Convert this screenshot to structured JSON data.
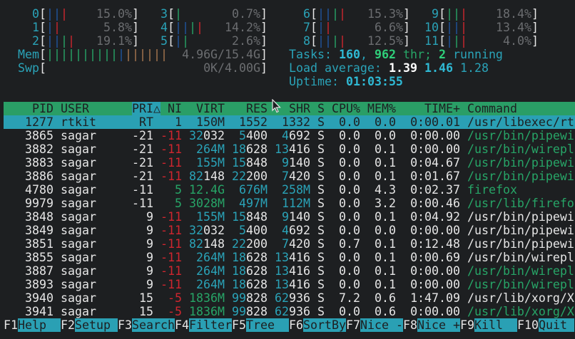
{
  "colors": {
    "background": "#1d1f21",
    "header_bg": "#2a9e66",
    "selected_bg": "#2aa0b4",
    "label": "#2aa3b8",
    "green": "#27a567",
    "red": "#d0262f",
    "bar_blue": "#1f55a0",
    "bar_orange": "#a9784f"
  },
  "cpus": [
    {
      "id": "0",
      "bars": [
        "blue",
        "blue",
        "red"
      ],
      "value": "15.0%"
    },
    {
      "id": "1",
      "bars": [
        "blue",
        "red"
      ],
      "value": "5.8%"
    },
    {
      "id": "2",
      "bars": [
        "blue",
        "blue",
        "green",
        "red"
      ],
      "value": "19.1%"
    },
    {
      "id": "3",
      "bars": [
        "green"
      ],
      "value": "0.7%"
    },
    {
      "id": "4",
      "bars": [
        "blue",
        "blue",
        "green",
        "red"
      ],
      "value": "14.2%"
    },
    {
      "id": "5",
      "bars": [
        "blue",
        "green"
      ],
      "value": "2.6%"
    },
    {
      "id": "6",
      "bars": [
        "blue",
        "blue",
        "green",
        "red"
      ],
      "value": "15.3%"
    },
    {
      "id": "7",
      "bars": [
        "blue",
        "red"
      ],
      "value": "6.6%"
    },
    {
      "id": "8",
      "bars": [
        "blue",
        "blue",
        "green",
        "red"
      ],
      "value": "12.5%"
    },
    {
      "id": "9",
      "bars": [
        "green",
        "green",
        "red"
      ],
      "value": "18.4%"
    },
    {
      "id": "10",
      "bars": [
        "blue",
        "blue",
        "red"
      ],
      "value": "13.4%"
    },
    {
      "id": "11",
      "bars": [
        "blue",
        "green",
        "red"
      ],
      "value": "4.0%"
    }
  ],
  "mem": {
    "label": "Mem",
    "bars": [
      "green",
      "green",
      "green",
      "green",
      "green",
      "green",
      "green",
      "green",
      "green",
      "green",
      "blue",
      "orange",
      "orange",
      "orange",
      "orange",
      "orange",
      "orange"
    ],
    "value": "4.96G/15.4G"
  },
  "swp": {
    "label": "Swp",
    "bars": [],
    "value": "0K/4.00G"
  },
  "tasks": {
    "label": "Tasks: ",
    "count": "160",
    "sep": ", ",
    "threads": "962",
    "thr_label": " thr; ",
    "running": "2",
    "running_label": " running"
  },
  "load": {
    "label": "Load average: ",
    "one": "1.39",
    "five": "1.46",
    "fifteen": "1.28"
  },
  "uptime": {
    "label": "Uptime: ",
    "value": "01:03:55"
  },
  "columns": [
    "PID",
    "USER",
    "PRI",
    "△",
    "NI",
    "VIRT",
    "RES",
    "SHR",
    "S",
    "CPU%",
    "MEM%",
    "TIME+",
    "Command"
  ],
  "sort_column": "PRI",
  "processes": [
    {
      "pid": "1277",
      "user": "rtkit",
      "pri": "RT",
      "ni": "1",
      "virt": "150M",
      "res": "1552",
      "shr": "1332",
      "s": "S",
      "cpu": "0.0",
      "mem": "0.0",
      "time": "0:00.01",
      "command": "/usr/libexec/rt",
      "thread": false,
      "selected": true
    },
    {
      "pid": "3865",
      "user": "sagar",
      "pri": "-21",
      "ni": "-11",
      "virt": "32032",
      "res": "5400",
      "shr": "4692",
      "s": "S",
      "cpu": "0.0",
      "mem": "0.0",
      "time": "0:00.00",
      "command": "/usr/bin/pipewi",
      "thread": true
    },
    {
      "pid": "3882",
      "user": "sagar",
      "pri": "-21",
      "ni": "-11",
      "virt": "264M",
      "res": "18628",
      "shr": "13416",
      "s": "S",
      "cpu": "0.0",
      "mem": "0.1",
      "time": "0:00.00",
      "command": "/usr/bin/wirepl",
      "thread": true
    },
    {
      "pid": "3883",
      "user": "sagar",
      "pri": "-21",
      "ni": "-11",
      "virt": "155M",
      "res": "15848",
      "shr": "9140",
      "s": "S",
      "cpu": "0.0",
      "mem": "0.1",
      "time": "0:04.67",
      "command": "/usr/bin/pipewi",
      "thread": true
    },
    {
      "pid": "3886",
      "user": "sagar",
      "pri": "-21",
      "ni": "-11",
      "virt": "82148",
      "res": "22200",
      "shr": "7420",
      "s": "S",
      "cpu": "0.0",
      "mem": "0.1",
      "time": "0:01.67",
      "command": "/usr/bin/pipewi",
      "thread": true
    },
    {
      "pid": "4780",
      "user": "sagar",
      "pri": "-11",
      "ni": "5",
      "virt": "12.4G",
      "res": "676M",
      "shr": "258M",
      "s": "S",
      "cpu": "0.0",
      "mem": "4.3",
      "time": "0:02.37",
      "command": "firefox",
      "thread": true
    },
    {
      "pid": "9979",
      "user": "sagar",
      "pri": "-11",
      "ni": "5",
      "virt": "3028M",
      "res": "497M",
      "shr": "112M",
      "s": "S",
      "cpu": "0.0",
      "mem": "3.2",
      "time": "0:00.46",
      "command": "/usr/lib/firefo",
      "thread": true
    },
    {
      "pid": "3848",
      "user": "sagar",
      "pri": "9",
      "ni": "-11",
      "virt": "155M",
      "res": "15848",
      "shr": "9140",
      "s": "S",
      "cpu": "0.0",
      "mem": "0.1",
      "time": "0:04.92",
      "command": "/usr/bin/pipewi",
      "thread": false
    },
    {
      "pid": "3849",
      "user": "sagar",
      "pri": "9",
      "ni": "-11",
      "virt": "32032",
      "res": "5400",
      "shr": "4692",
      "s": "S",
      "cpu": "0.0",
      "mem": "0.0",
      "time": "0:00.00",
      "command": "/usr/bin/pipewi",
      "thread": false
    },
    {
      "pid": "3851",
      "user": "sagar",
      "pri": "9",
      "ni": "-11",
      "virt": "82148",
      "res": "22200",
      "shr": "7420",
      "s": "S",
      "cpu": "0.7",
      "mem": "0.1",
      "time": "0:12.48",
      "command": "/usr/bin/pipewi",
      "thread": false
    },
    {
      "pid": "3855",
      "user": "sagar",
      "pri": "9",
      "ni": "-11",
      "virt": "264M",
      "res": "18628",
      "shr": "13416",
      "s": "S",
      "cpu": "0.0",
      "mem": "0.1",
      "time": "0:00.69",
      "command": "/usr/bin/wirepl",
      "thread": false
    },
    {
      "pid": "3887",
      "user": "sagar",
      "pri": "9",
      "ni": "-11",
      "virt": "264M",
      "res": "18628",
      "shr": "13416",
      "s": "S",
      "cpu": "0.0",
      "mem": "0.1",
      "time": "0:00.00",
      "command": "/usr/bin/wirepl",
      "thread": true
    },
    {
      "pid": "3893",
      "user": "sagar",
      "pri": "9",
      "ni": "-11",
      "virt": "264M",
      "res": "18628",
      "shr": "13416",
      "s": "S",
      "cpu": "0.0",
      "mem": "0.1",
      "time": "0:00.00",
      "command": "/usr/bin/wirepl",
      "thread": true
    },
    {
      "pid": "3940",
      "user": "sagar",
      "pri": "15",
      "ni": "-5",
      "virt": "1836M",
      "res": "99828",
      "shr": "62936",
      "s": "S",
      "cpu": "7.2",
      "mem": "0.6",
      "time": "1:47.09",
      "command": "/usr/lib/xorg/X",
      "thread": false
    },
    {
      "pid": "3941",
      "user": "sagar",
      "pri": "15",
      "ni": "-5",
      "virt": "1836M",
      "res": "99828",
      "shr": "62936",
      "s": "S",
      "cpu": "0.0",
      "mem": "0.6",
      "time": "0:00.00",
      "command": "/usr/lib/xorg/X",
      "thread": true
    }
  ],
  "footer": [
    {
      "key": "F1",
      "label": "Help  "
    },
    {
      "key": "F2",
      "label": "Setup "
    },
    {
      "key": "F3",
      "label": "Search"
    },
    {
      "key": "F4",
      "label": "Filter"
    },
    {
      "key": "F5",
      "label": "Tree  "
    },
    {
      "key": "F6",
      "label": "SortBy"
    },
    {
      "key": "F7",
      "label": "Nice -"
    },
    {
      "key": "F8",
      "label": "Nice +"
    },
    {
      "key": "F9",
      "label": "Kill  "
    },
    {
      "key": "F10",
      "label": "Quit "
    }
  ],
  "icons": {
    "cursor": "mouse-pointer-icon",
    "sort_indicator": "triangle-up-icon"
  }
}
